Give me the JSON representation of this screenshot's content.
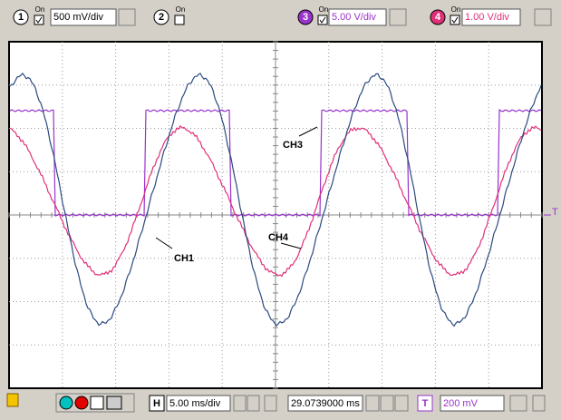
{
  "channels": [
    {
      "number": "1",
      "on": "On",
      "scale": "500 mV/div"
    },
    {
      "number": "2",
      "on": "On"
    },
    {
      "number": "3",
      "on": "On",
      "scale": "5.00 V/div"
    },
    {
      "number": "4",
      "on": "On",
      "scale": "1.00 V/div"
    }
  ],
  "traces": [
    {
      "label": "CH3"
    },
    {
      "label": "CH1"
    },
    {
      "label": "CH4"
    }
  ],
  "trigger_marker": "T",
  "bottom": {
    "h_label": "H",
    "timebase": "5.00 ms/div",
    "position": "29.0739000 ms",
    "t_label": "T",
    "trigger_level": "200 mV"
  }
}
